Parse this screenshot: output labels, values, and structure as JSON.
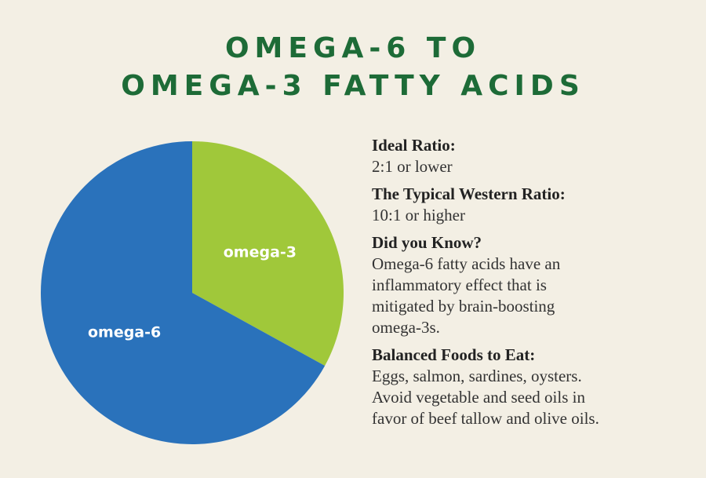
{
  "title": {
    "line1": "OMEGA-6 TO",
    "line2": "OMEGA-3 FATTY ACIDS"
  },
  "colors": {
    "title": "#1d6b37",
    "background": "#f3efe4",
    "omega6": "#2a72bb",
    "omega3": "#a0c83a"
  },
  "chart_data": {
    "type": "pie",
    "labels": [
      "omega-3",
      "omega-6"
    ],
    "values": [
      33,
      67
    ],
    "colors": [
      "#a0c83a",
      "#2a72bb"
    ]
  },
  "info": {
    "ideal_ratio": {
      "heading": "Ideal Ratio:",
      "text": "2:1 or lower"
    },
    "western_ratio": {
      "heading": "The Typical Western Ratio:",
      "text": "10:1 or higher"
    },
    "did_you_know": {
      "heading": "Did you Know?",
      "line1": "Omega-6 fatty acids have an",
      "line2": "inflammatory effect that is",
      "line3": "mitigated by brain-boosting",
      "line4": "omega-3s."
    },
    "balanced_foods": {
      "heading": "Balanced Foods to Eat:",
      "line1": "Eggs, salmon, sardines, oysters.",
      "line2": "Avoid vegetable and seed oils in",
      "line3": "favor of beef tallow and olive oils."
    }
  }
}
